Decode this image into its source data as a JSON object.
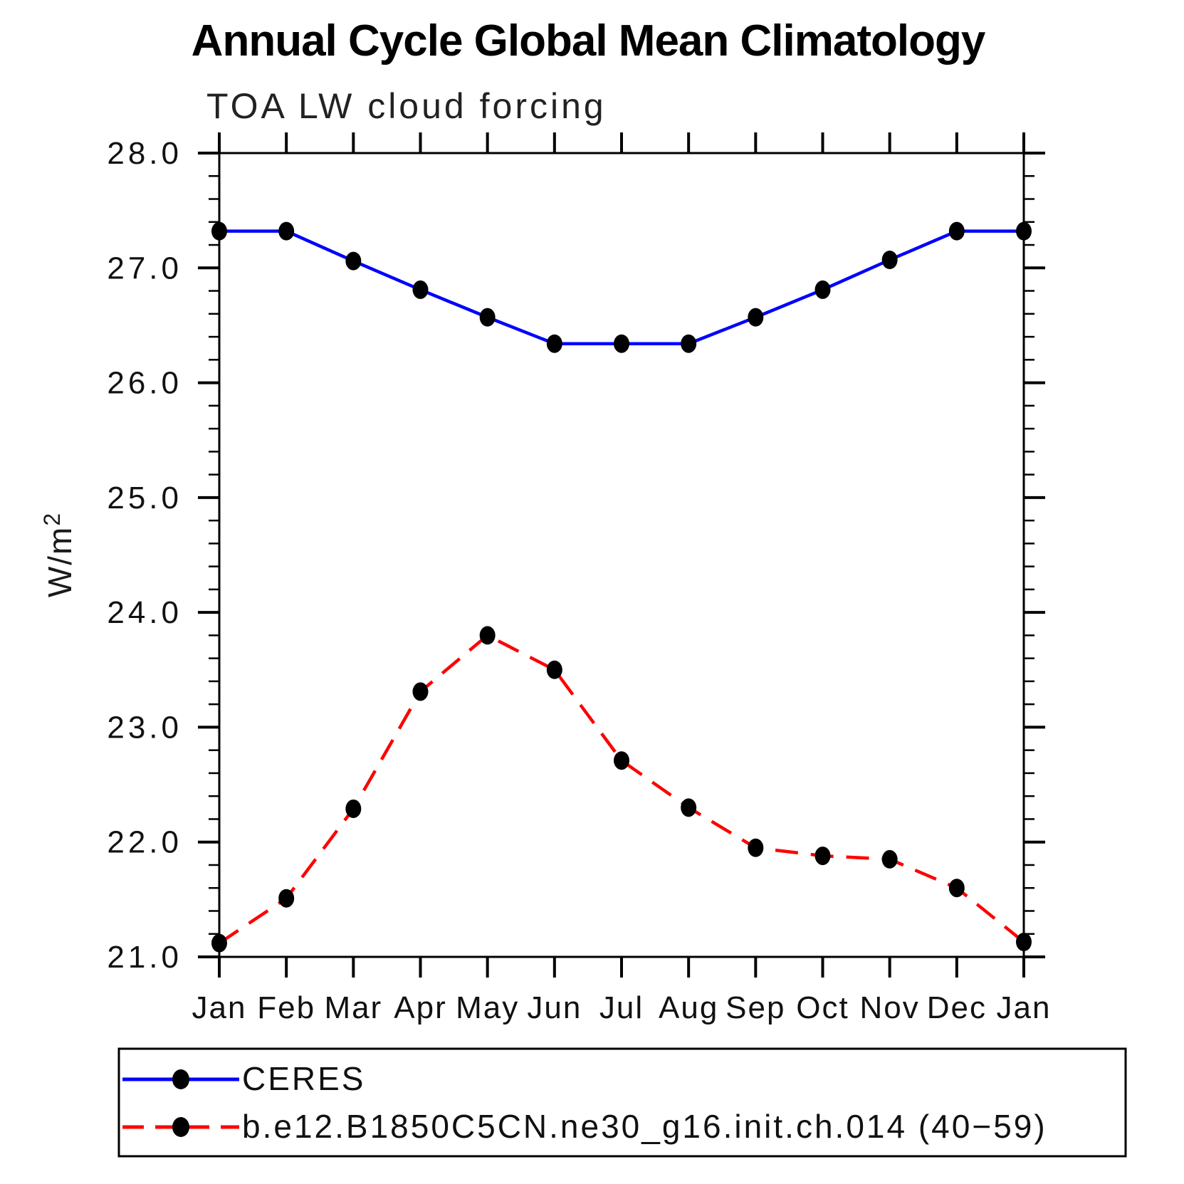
{
  "title": "Annual Cycle Global Mean Climatology",
  "subtitle": "TOA LW cloud forcing",
  "chart_data": {
    "type": "line",
    "categories": [
      "Jan",
      "Feb",
      "Mar",
      "Apr",
      "May",
      "Jun",
      "Jul",
      "Aug",
      "Sep",
      "Oct",
      "Nov",
      "Dec",
      "Jan"
    ],
    "series": [
      {
        "name": "CERES",
        "color": "#0000ff",
        "style": "solid",
        "marker": "filled-circle",
        "marker_color": "#000000",
        "values": [
          27.32,
          27.32,
          27.06,
          26.81,
          26.57,
          26.34,
          26.34,
          26.34,
          26.57,
          26.81,
          27.07,
          27.32,
          27.32
        ]
      },
      {
        "name": "b.e12.B1850C5CN.ne30_g16.init.ch.014 (40−59)",
        "color": "#ff0000",
        "style": "dashed",
        "marker": "filled-circle",
        "marker_color": "#000000",
        "values": [
          21.12,
          21.51,
          22.29,
          23.31,
          23.8,
          23.5,
          22.71,
          22.3,
          21.95,
          21.88,
          21.85,
          21.6,
          21.13
        ]
      }
    ],
    "xlabel": "",
    "ylabel": "W/m",
    "ylabel_sup": "2",
    "ylim": [
      21.0,
      28.0
    ],
    "ytick_step": 1.0,
    "ytick_minor_step": 0.2,
    "ytick_labels": [
      "21.0",
      "22.0",
      "23.0",
      "24.0",
      "25.0",
      "26.0",
      "27.0",
      "28.0"
    ],
    "grid": "off",
    "legend_position": "bottom-left-box"
  }
}
